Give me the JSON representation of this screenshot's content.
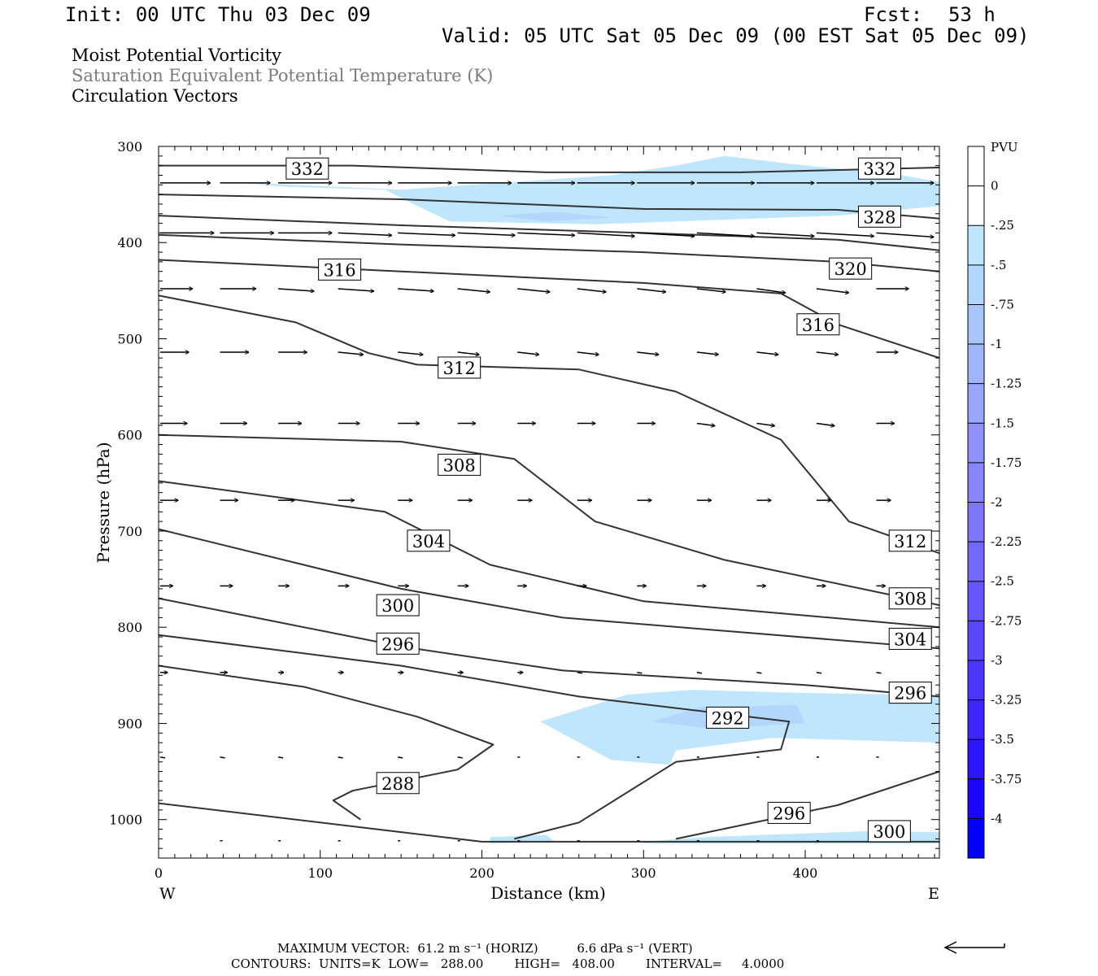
{
  "header": {
    "init": "Init: 00 UTC Thu 03 Dec 09",
    "fcst_label": "Fcst:",
    "fcst_value": "53 h",
    "valid": "Valid: 05 UTC Sat 05 Dec 09 (00 EST Sat 05 Dec 09)"
  },
  "titles": [
    {
      "text": "Moist Potential Vorticity",
      "color": "#000000"
    },
    {
      "text": "Saturation Equivalent Potential Temperature (K)",
      "color": "#7a7a7a"
    },
    {
      "text": "Circulation Vectors",
      "color": "#000000"
    }
  ],
  "footer": {
    "max_vector": "MAXIMUM VECTOR:  61.2 m s⁻¹ (HORIZ)          6.6 dPa s⁻¹ (VERT)",
    "contours": "CONTOURS:  UNITS=K  LOW=   288.00        HIGH=   408.00        INTERVAL=     4.0000"
  },
  "chart_data": {
    "type": "cross-section",
    "xlabel": "Distance (km)",
    "ylabel": "Pressure (hPa)",
    "xlim": [
      0,
      483
    ],
    "ylim": [
      1040,
      300
    ],
    "x_ticks": [
      0,
      100,
      200,
      300,
      400
    ],
    "y_ticks": [
      300,
      400,
      500,
      600,
      700,
      800,
      900,
      1000
    ],
    "x_end_labels": {
      "left": "W",
      "right": "E"
    },
    "colorbar": {
      "unit": "PVU",
      "labels": [
        "0",
        "-.25",
        "-.5",
        "-.75",
        "-1",
        "-1.25",
        "-1.5",
        "-1.75",
        "-2",
        "-2.25",
        "-2.5",
        "-2.75",
        "-3",
        "-3.25",
        "-3.5",
        "-3.75",
        "-4"
      ],
      "colors": [
        "#ffffff",
        "#ffffff",
        "#bfe6fc",
        "#b3d7fc",
        "#a9c6fc",
        "#a2b6fc",
        "#9aa6fc",
        "#9193fc",
        "#8885fc",
        "#7e77fc",
        "#7268fc",
        "#6656fc",
        "#5a46fc",
        "#4d36fc",
        "#3f26fc",
        "#2d16fc",
        "#1a06fc",
        "#0000fc"
      ]
    },
    "pv_fill_colors": {
      "light": "#bfe6fc",
      "medium": "#b3d7fc"
    },
    "contours": [
      {
        "level": 332,
        "points": [
          [
            0,
            320
          ],
          [
            120,
            320
          ],
          [
            240,
            327
          ],
          [
            360,
            327
          ],
          [
            483,
            322
          ]
        ]
      },
      {
        "level": 328,
        "points": [
          [
            0,
            350
          ],
          [
            150,
            355
          ],
          [
            300,
            365
          ],
          [
            420,
            366
          ],
          [
            483,
            375
          ]
        ]
      },
      {
        "level": 324,
        "points": [
          [
            0,
            372
          ],
          [
            150,
            382
          ],
          [
            300,
            390
          ],
          [
            420,
            397
          ],
          [
            483,
            408
          ]
        ]
      },
      {
        "level": 320,
        "points": [
          [
            0,
            392
          ],
          [
            150,
            402
          ],
          [
            300,
            410
          ],
          [
            420,
            420
          ],
          [
            483,
            430
          ]
        ]
      },
      {
        "level": 316,
        "points": [
          [
            0,
            418
          ],
          [
            150,
            430
          ],
          [
            300,
            442
          ],
          [
            385,
            453
          ],
          [
            420,
            485
          ],
          [
            483,
            520
          ]
        ]
      },
      {
        "level": 312,
        "points": [
          [
            0,
            455
          ],
          [
            85,
            483
          ],
          [
            130,
            515
          ],
          [
            160,
            527
          ],
          [
            260,
            532
          ],
          [
            320,
            555
          ],
          [
            385,
            605
          ],
          [
            427,
            690
          ],
          [
            483,
            723
          ]
        ]
      },
      {
        "level": 308,
        "points": [
          [
            0,
            600
          ],
          [
            150,
            607
          ],
          [
            220,
            625
          ],
          [
            270,
            690
          ],
          [
            350,
            730
          ],
          [
            483,
            777
          ]
        ]
      },
      {
        "level": 304,
        "points": [
          [
            0,
            648
          ],
          [
            140,
            680
          ],
          [
            205,
            735
          ],
          [
            300,
            773
          ],
          [
            483,
            800
          ]
        ]
      },
      {
        "level": 300,
        "points": [
          [
            0,
            698
          ],
          [
            150,
            760
          ],
          [
            250,
            790
          ],
          [
            483,
            822
          ]
        ]
      },
      {
        "level": 296,
        "points": [
          [
            0,
            770
          ],
          [
            150,
            820
          ],
          [
            250,
            845
          ],
          [
            400,
            860
          ],
          [
            483,
            872
          ]
        ]
      },
      {
        "level": 292,
        "points": [
          [
            0,
            808
          ],
          [
            150,
            840
          ],
          [
            260,
            872
          ],
          [
            390,
            898
          ],
          [
            385,
            927
          ],
          [
            320,
            940
          ],
          [
            260,
            1003
          ],
          [
            220,
            1020
          ]
        ]
      },
      {
        "level": 288,
        "points": [
          [
            0,
            840
          ],
          [
            90,
            862
          ],
          [
            160,
            893
          ],
          [
            207,
            922
          ],
          [
            185,
            948
          ],
          [
            120,
            970
          ],
          [
            108,
            980
          ],
          [
            125,
            1000
          ]
        ]
      },
      {
        "level": 296,
        "points": [
          [
            320,
            1020
          ],
          [
            420,
            985
          ],
          [
            483,
            950
          ]
        ]
      },
      {
        "level": 300,
        "points": [
          [
            0,
            983
          ],
          [
            150,
            1013
          ],
          [
            200,
            1023
          ],
          [
            483,
            1023
          ]
        ]
      }
    ],
    "contour_labels": [
      {
        "level": 332,
        "x": 92,
        "p": 323
      },
      {
        "level": 332,
        "x": 446,
        "p": 323
      },
      {
        "level": 328,
        "x": 446,
        "p": 373
      },
      {
        "level": 320,
        "x": 428,
        "p": 427
      },
      {
        "level": 316,
        "x": 112,
        "p": 428
      },
      {
        "level": 316,
        "x": 408,
        "p": 485
      },
      {
        "level": 312,
        "x": 186,
        "p": 530
      },
      {
        "level": 312,
        "x": 465,
        "p": 710
      },
      {
        "level": 308,
        "x": 186,
        "p": 631
      },
      {
        "level": 308,
        "x": 465,
        "p": 770
      },
      {
        "level": 304,
        "x": 167,
        "p": 710
      },
      {
        "level": 304,
        "x": 465,
        "p": 812
      },
      {
        "level": 300,
        "x": 148,
        "p": 777
      },
      {
        "level": 300,
        "x": 452,
        "p": 1012
      },
      {
        "level": 296,
        "x": 148,
        "p": 817
      },
      {
        "level": 296,
        "x": 465,
        "p": 868
      },
      {
        "level": 296,
        "x": 390,
        "p": 993
      },
      {
        "level": 292,
        "x": 352,
        "p": 894
      },
      {
        "level": 288,
        "x": 148,
        "p": 962
      }
    ],
    "pv_regions": [
      {
        "shade": "light",
        "points": [
          [
            45,
            337
          ],
          [
            150,
            345
          ],
          [
            280,
            330
          ],
          [
            320,
            320
          ],
          [
            350,
            310
          ],
          [
            390,
            318
          ],
          [
            460,
            330
          ],
          [
            483,
            337
          ],
          [
            483,
            362
          ],
          [
            420,
            372
          ],
          [
            270,
            381
          ],
          [
            180,
            378
          ],
          [
            160,
            362
          ],
          [
            140,
            345
          ],
          [
            80,
            342
          ]
        ]
      },
      {
        "shade": "medium",
        "points": [
          [
            210,
            372
          ],
          [
            245,
            368
          ],
          [
            280,
            374
          ],
          [
            240,
            378
          ]
        ]
      },
      {
        "shade": "light",
        "points": [
          [
            236,
            898
          ],
          [
            290,
            870
          ],
          [
            330,
            865
          ],
          [
            390,
            868
          ],
          [
            460,
            870
          ],
          [
            483,
            872
          ],
          [
            483,
            920
          ],
          [
            380,
            915
          ],
          [
            320,
            928
          ],
          [
            316,
            943
          ],
          [
            280,
            938
          ]
        ]
      },
      {
        "shade": "medium",
        "points": [
          [
            305,
            898
          ],
          [
            335,
            883
          ],
          [
            395,
            881
          ],
          [
            400,
            900
          ],
          [
            340,
            905
          ]
        ]
      },
      {
        "shade": "light",
        "points": [
          [
            300,
            1023
          ],
          [
            340,
            1018
          ],
          [
            440,
            1012
          ],
          [
            483,
            1013
          ],
          [
            483,
            1025
          ],
          [
            300,
            1025
          ]
        ]
      },
      {
        "shade": "light",
        "points": [
          [
            205,
            1018
          ],
          [
            240,
            1016
          ],
          [
            245,
            1023
          ],
          [
            205,
            1025
          ]
        ]
      }
    ],
    "vectors": {
      "rows": [
        {
          "p": 338,
          "x": [
            0,
            37,
            73,
            110,
            147,
            184,
            221,
            258,
            295,
            332,
            369,
            406,
            443
          ],
          "u": [
            28,
            28,
            30,
            30,
            30,
            30,
            32,
            32,
            32,
            32,
            32,
            32,
            32
          ],
          "w": [
            0,
            0,
            0,
            0,
            0,
            0,
            0,
            0,
            0,
            0,
            0,
            0,
            0
          ]
        },
        {
          "p": 390,
          "x": [
            0,
            37,
            73,
            110,
            147,
            184,
            221,
            258,
            295,
            332,
            369,
            406,
            443
          ],
          "u": [
            30,
            30,
            30,
            30,
            32,
            32,
            32,
            32,
            32,
            32,
            32,
            32,
            32
          ],
          "w": [
            0,
            0,
            0,
            3,
            3,
            3,
            3,
            4,
            4,
            4,
            4,
            4,
            5
          ]
        },
        {
          "p": 448,
          "x": [
            0,
            37,
            73,
            110,
            147,
            184,
            221,
            258,
            295,
            332,
            369,
            406,
            443
          ],
          "u": [
            18,
            20,
            20,
            20,
            20,
            18,
            18,
            16,
            16,
            16,
            16,
            18,
            18
          ],
          "w": [
            0,
            0,
            3,
            3,
            3,
            4,
            4,
            4,
            4,
            4,
            5,
            5,
            0
          ]
        },
        {
          "p": 514,
          "x": [
            0,
            37,
            73,
            110,
            147,
            184,
            221,
            258,
            295,
            332,
            369,
            406,
            443
          ],
          "u": [
            16,
            16,
            16,
            14,
            14,
            12,
            12,
            12,
            12,
            12,
            12,
            12,
            12
          ],
          "w": [
            0,
            0,
            0,
            3,
            3,
            3,
            3,
            3,
            3,
            3,
            3,
            3,
            0
          ]
        },
        {
          "p": 588,
          "x": [
            0,
            37,
            73,
            110,
            147,
            184,
            221,
            258,
            295,
            332,
            369,
            406,
            443
          ],
          "u": [
            15,
            15,
            13,
            12,
            12,
            10,
            10,
            10,
            10,
            10,
            10,
            10,
            10
          ],
          "w": [
            0,
            0,
            0,
            0,
            0,
            0,
            0,
            0,
            0,
            3,
            3,
            3,
            0
          ]
        },
        {
          "p": 668,
          "x": [
            0,
            37,
            73,
            110,
            147,
            184,
            221,
            258,
            295,
            332,
            369,
            406,
            443
          ],
          "u": [
            10,
            10,
            9,
            9,
            8,
            8,
            8,
            8,
            8,
            8,
            8,
            8,
            8
          ],
          "w": [
            0,
            0,
            0,
            0,
            0,
            0,
            0,
            0,
            0,
            0,
            0,
            0,
            0
          ]
        },
        {
          "p": 757,
          "x": [
            0,
            37,
            73,
            110,
            147,
            184,
            221,
            258,
            295,
            332,
            369,
            406,
            443
          ],
          "u": [
            7,
            7,
            6,
            6,
            6,
            6,
            5,
            5,
            5,
            5,
            5,
            5,
            5
          ],
          "w": [
            0,
            0,
            0,
            0,
            0,
            0,
            0,
            0,
            0,
            0,
            0,
            0,
            0
          ]
        },
        {
          "p": 847,
          "x": [
            0,
            37,
            73,
            110,
            147,
            184,
            221,
            258,
            295,
            332,
            369,
            406,
            443
          ],
          "u": [
            4,
            4,
            3,
            3,
            3,
            3,
            3,
            2,
            2,
            2,
            2,
            2,
            2
          ],
          "w": [
            0,
            0,
            0,
            0,
            0,
            0,
            0,
            0,
            0,
            0,
            0,
            0,
            0
          ]
        },
        {
          "p": 935,
          "x": [
            0,
            37,
            73,
            110,
            147,
            184,
            221,
            258,
            295,
            332,
            369,
            406,
            443
          ],
          "u": [
            2,
            2,
            2,
            2,
            2,
            2,
            1,
            1,
            1,
            1,
            1,
            1,
            1
          ],
          "w": [
            0,
            0,
            0,
            0,
            0,
            0,
            0,
            0,
            0,
            0,
            0,
            0,
            0
          ]
        },
        {
          "p": 1022,
          "x": [
            37,
            73,
            110,
            147,
            184,
            221,
            258,
            295,
            332,
            369,
            406,
            443
          ],
          "u": [
            1,
            1,
            1,
            1,
            1,
            1,
            1,
            1,
            1,
            1,
            1,
            1
          ],
          "w": [
            0,
            0,
            0,
            0,
            0,
            0,
            0,
            0,
            0,
            0,
            0,
            0
          ]
        }
      ]
    }
  }
}
